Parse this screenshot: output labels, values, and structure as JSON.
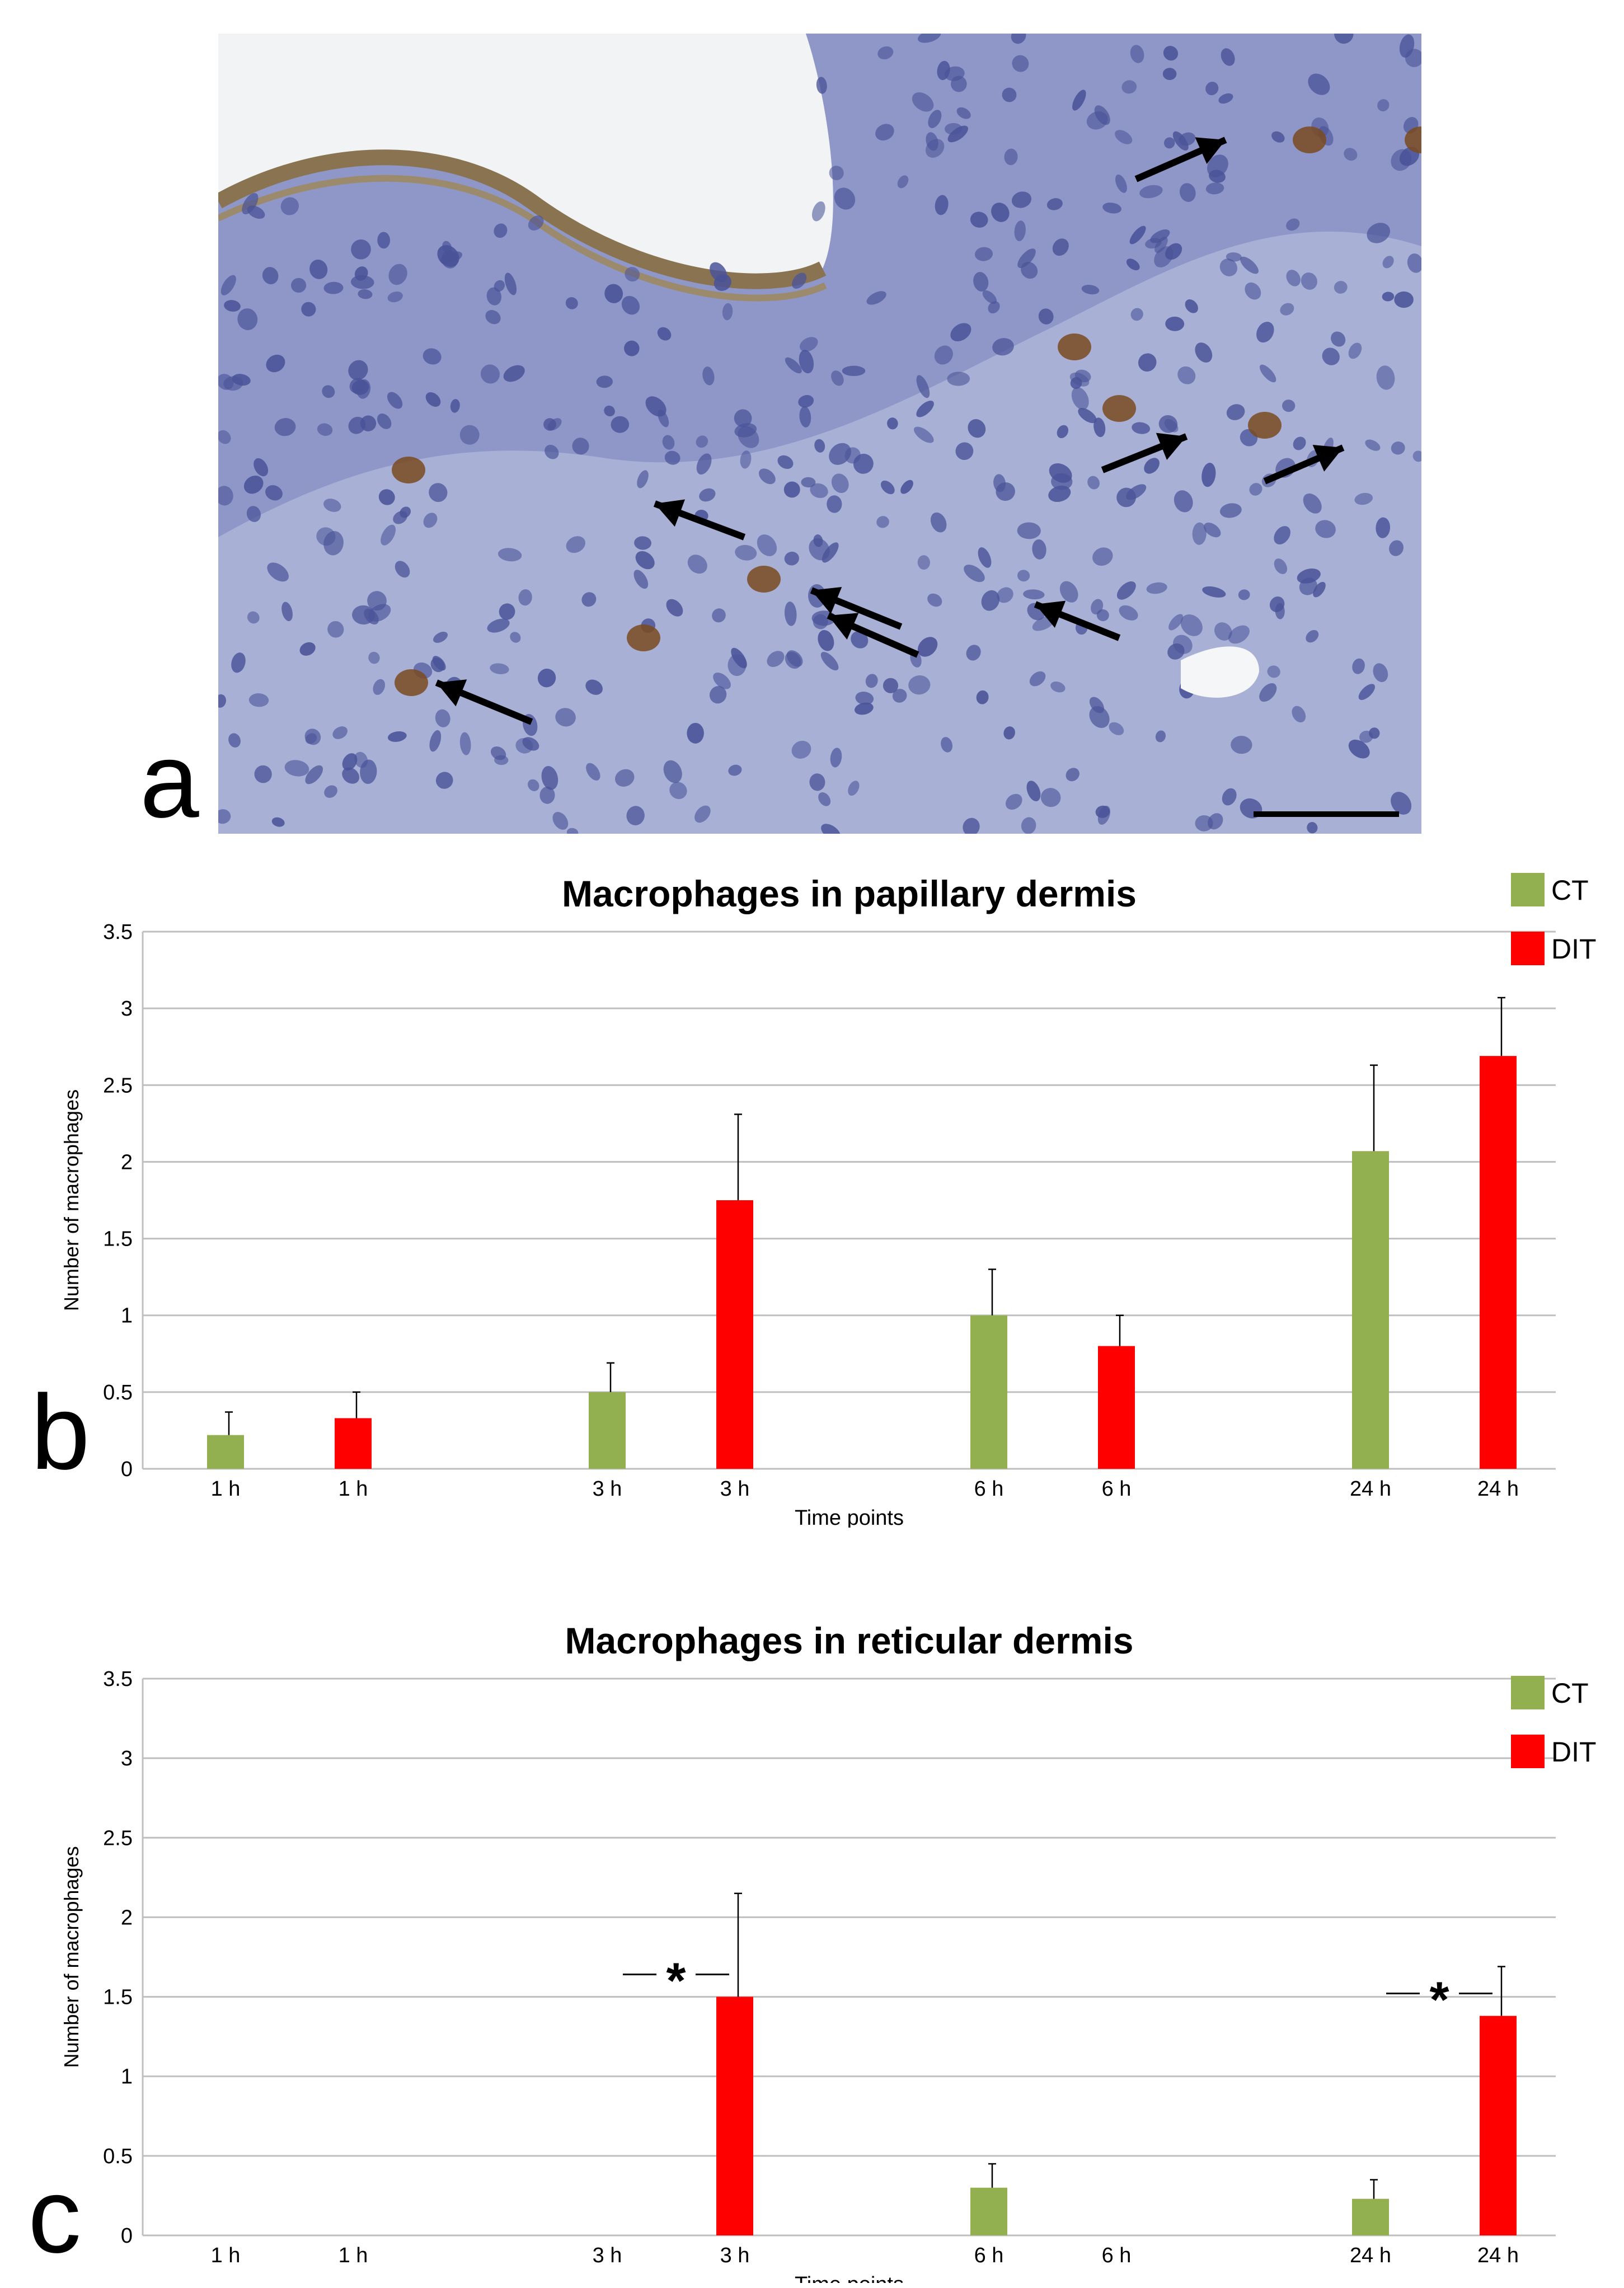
{
  "panels": {
    "a": "a",
    "b": "b",
    "c": "c"
  },
  "colors": {
    "ct": "#92b050",
    "dit": "#ff0000",
    "grid": "#bfbfbf",
    "tissue": "#a8b0d6",
    "nuclei": "#4a5398",
    "macrophage": "#7a4a20"
  },
  "chart_data": [
    {
      "type": "bar",
      "title": "Macrophages in papillary dermis",
      "xlabel": "Time points",
      "ylabel": "Number of macrophages",
      "ylim": [
        0,
        3.5
      ],
      "yticks": [
        "0",
        "0.5",
        "1",
        "1.5",
        "2",
        "2.5",
        "3",
        "3.5"
      ],
      "legend": [
        {
          "label": "CT",
          "color": "#92b050"
        },
        {
          "label": "DIT",
          "color": "#ff0000"
        }
      ],
      "legend_position": "top-right",
      "grid": true,
      "bars": [
        {
          "label": "1 h",
          "series": "CT",
          "value": 0.22,
          "error": 0.15
        },
        {
          "label": "1 h",
          "series": "DIT",
          "value": 0.33,
          "error": 0.17
        },
        {
          "label": "3 h",
          "series": "CT",
          "value": 0.5,
          "error": 0.19
        },
        {
          "label": "3 h",
          "series": "DIT",
          "value": 1.75,
          "error": 0.56
        },
        {
          "label": "6 h",
          "series": "CT",
          "value": 1.0,
          "error": 0.3
        },
        {
          "label": "6 h",
          "series": "DIT",
          "value": 0.8,
          "error": 0.2
        },
        {
          "label": "24 h",
          "series": "CT",
          "value": 2.07,
          "error": 0.56
        },
        {
          "label": "24 h",
          "series": "DIT",
          "value": 2.69,
          "error": 0.38
        }
      ],
      "annotations": []
    },
    {
      "type": "bar",
      "title": "Macrophages in reticular dermis",
      "xlabel": "Time points",
      "ylabel": "Number of macrophages",
      "ylim": [
        0,
        3.5
      ],
      "yticks": [
        "0",
        "0.5",
        "1",
        "1.5",
        "2",
        "2.5",
        "3",
        "3.5"
      ],
      "legend": [
        {
          "label": "CT",
          "color": "#92b050"
        },
        {
          "label": "DIT",
          "color": "#ff0000"
        }
      ],
      "legend_position": "top-right",
      "grid": true,
      "bars": [
        {
          "label": "1 h",
          "series": "CT",
          "value": 0,
          "error": 0
        },
        {
          "label": "1 h",
          "series": "DIT",
          "value": 0,
          "error": 0
        },
        {
          "label": "3 h",
          "series": "CT",
          "value": 0,
          "error": 0
        },
        {
          "label": "3 h",
          "series": "DIT",
          "value": 1.5,
          "error": 0.65
        },
        {
          "label": "6 h",
          "series": "CT",
          "value": 0.3,
          "error": 0.15
        },
        {
          "label": "6 h",
          "series": "DIT",
          "value": 0,
          "error": 0
        },
        {
          "label": "24 h",
          "series": "CT",
          "value": 0.23,
          "error": 0.12
        },
        {
          "label": "24 h",
          "series": "DIT",
          "value": 1.38,
          "error": 0.31
        }
      ],
      "annotations": [
        {
          "text": "*",
          "bar": 3
        },
        {
          "text": "*",
          "bar": 7
        }
      ]
    }
  ]
}
